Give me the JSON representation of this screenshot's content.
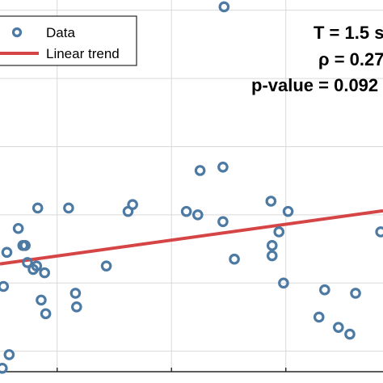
{
  "chart_data": {
    "type": "scatter",
    "xlim": [
      0.25,
      3.6
    ],
    "ylim": [
      0.7,
      6.15
    ],
    "x_gridlines": [
      0.75,
      1.75,
      2.75
    ],
    "y_gridlines": [
      1.0,
      2.0,
      3.0,
      4.0,
      5.0,
      6.0
    ],
    "grid": true,
    "legend": {
      "placement": "top-left"
    },
    "series": [
      {
        "name": "Data",
        "color": "#4d7aa3",
        "marker": "open-circle",
        "x": [
          0.27,
          0.33,
          0.28,
          0.31,
          0.41,
          0.45,
          0.47,
          0.49,
          0.54,
          0.57,
          0.58,
          0.61,
          0.64,
          0.65,
          0.85,
          0.91,
          0.92,
          1.18,
          1.37,
          1.41,
          1.88,
          1.98,
          2.0,
          2.2,
          2.2,
          2.21,
          2.3,
          2.62,
          2.63,
          2.63,
          2.69,
          2.73,
          2.77,
          3.04,
          3.09,
          3.21,
          3.31,
          3.36,
          3.58
        ],
        "y": [
          0.75,
          0.95,
          1.95,
          2.45,
          2.8,
          2.55,
          2.55,
          2.3,
          2.2,
          2.25,
          3.1,
          1.75,
          2.15,
          1.55,
          3.1,
          1.85,
          1.65,
          2.25,
          3.05,
          3.15,
          3.05,
          3.0,
          3.65,
          3.7,
          2.9,
          6.05,
          2.35,
          3.2,
          2.55,
          2.4,
          2.75,
          2.0,
          3.05,
          1.5,
          1.9,
          1.35,
          1.25,
          1.85,
          2.75
        ]
      }
    ],
    "trend": {
      "name": "Linear trend",
      "color": "#d64545",
      "x": [
        0.25,
        3.6
      ],
      "y": [
        2.28,
        3.06
      ]
    },
    "annotations": [
      "T = 1.5 s",
      "ρ = 0.27",
      "p-value = 0.092"
    ]
  },
  "legend_labels": {
    "data": "Data",
    "trend": "Linear trend"
  },
  "stats": {
    "period": "T = 1.5 s",
    "rho": "ρ = 0.27",
    "pvalue": "p-value = 0.092"
  }
}
